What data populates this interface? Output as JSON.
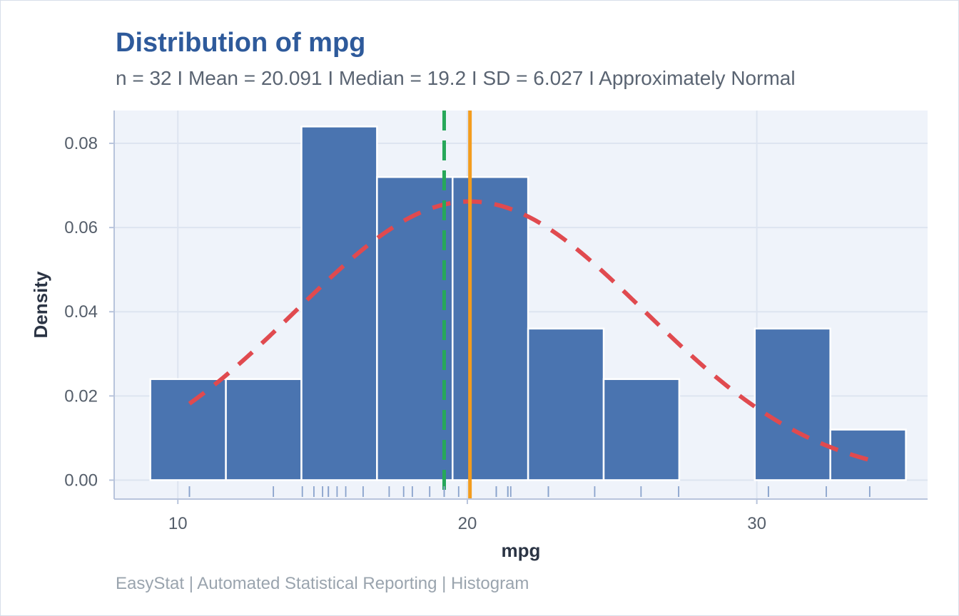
{
  "title": "Distribution of mpg",
  "subtitle": "n = 32  I  Mean = 20.091  I  Median = 19.2  I  SD = 6.027  I  Approximately Normal",
  "caption": "EasyStat | Automated Statistical Reporting | Histogram",
  "colors": {
    "bar_fill": "#4a74b0",
    "bar_edge": "#ffffff",
    "panel_bg": "#eff3fa",
    "grid": "#dde4f0",
    "density_curve": "#e04a4f",
    "mean_line": "#f39c1e",
    "median_line": "#27a85a",
    "rug": "#8aa3cc",
    "axis": "#b8c4dc"
  },
  "chart_data": {
    "type": "bar",
    "subtype": "histogram",
    "xlabel": "mpg",
    "ylabel": "Density",
    "xlim": [
      7.8,
      35.9
    ],
    "ylim": [
      -0.0045,
      0.0878
    ],
    "x_ticks": [
      10,
      20,
      30
    ],
    "y_ticks": [
      0,
      0.02,
      0.04,
      0.06,
      0.08
    ],
    "y_tick_labels": [
      "0.00",
      "0.02",
      "0.04",
      "0.06",
      "0.08"
    ],
    "bins": [
      {
        "x0": 9.05,
        "x1": 11.66,
        "density": 0.024
      },
      {
        "x0": 11.66,
        "x1": 14.27,
        "density": 0.024
      },
      {
        "x0": 14.27,
        "x1": 16.88,
        "density": 0.084
      },
      {
        "x0": 16.88,
        "x1": 19.49,
        "density": 0.072
      },
      {
        "x0": 19.49,
        "x1": 22.1,
        "density": 0.072
      },
      {
        "x0": 22.1,
        "x1": 24.71,
        "density": 0.036
      },
      {
        "x0": 24.71,
        "x1": 27.32,
        "density": 0.024
      },
      {
        "x0": 27.32,
        "x1": 29.93,
        "density": 0.0
      },
      {
        "x0": 29.93,
        "x1": 32.54,
        "density": 0.036
      },
      {
        "x0": 32.54,
        "x1": 35.15,
        "density": 0.012
      }
    ],
    "normal_curve": {
      "mean": 20.091,
      "sd": 6.027,
      "x_range": [
        10.4,
        33.9
      ]
    },
    "mean": 20.091,
    "median": 19.2,
    "rug": [
      10.4,
      10.4,
      13.3,
      14.3,
      14.7,
      15.0,
      15.2,
      15.2,
      15.5,
      15.8,
      16.4,
      17.3,
      17.8,
      18.1,
      18.7,
      19.2,
      19.2,
      19.7,
      21.0,
      21.0,
      21.4,
      21.4,
      21.5,
      22.8,
      22.8,
      24.4,
      26.0,
      27.3,
      30.4,
      30.4,
      32.4,
      33.9
    ]
  }
}
